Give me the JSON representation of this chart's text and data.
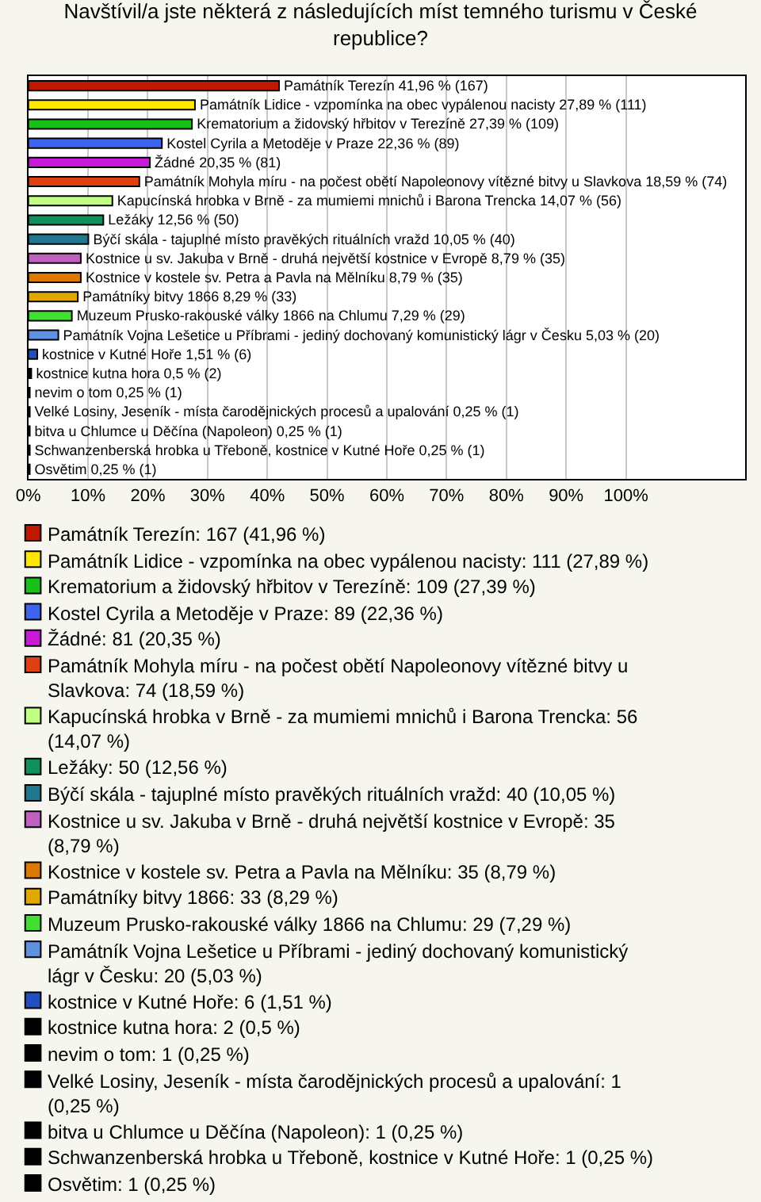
{
  "chart_data": {
    "type": "bar",
    "orientation": "horizontal",
    "title": "Navštívil/a jste některá z následujících míst temného turismu v České republice?",
    "categories": [
      "Památník Terezín",
      "Památník Lidice - vzpomínka na obec vypálenou nacisty",
      "Krematorium a židovský hřbitov v Terezíně",
      "Kostel Cyrila a Metoděje v Praze",
      "Žádné",
      "Památník Mohyla míru - na počest obětí Napoleonovy vítězné bitvy u Slavkova",
      "Kapucínská hrobka v Brně - za mumiemi mnichů i Barona Trencka",
      "Ležáky",
      "Býčí skála - tajuplné místo pravěkých rituálních vražd",
      "Kostnice u sv. Jakuba v Brně - druhá největší kostnice v Evropě",
      "Kostnice v kostele sv. Petra a Pavla na Mělníku",
      "Památníky bitvy 1866",
      "Muzeum Prusko-rakouské války 1866 na Chlumu",
      "Památník Vojna Lešetice u Příbrami - jediný dochovaný komunistický lágr v Česku",
      "kostnice v Kutné Hoře",
      "kostnice kutna hora",
      "nevim o tom",
      "Velké Losiny, Jeseník - místa čarodějnických procesů a upalování",
      "bitva u Chlumce u Děčína (Napoleon)",
      "Schwanzenberská hrobka u Třeboně, kostnice v Kutné Hoře",
      "Osvětim"
    ],
    "series": [
      {
        "name": "Památník Terezín: 167 (41,96 %)",
        "color": "#c01800",
        "values": [
          41.96,
          null,
          null,
          null,
          null,
          null,
          null,
          null,
          null,
          null,
          null,
          null,
          null,
          null,
          null,
          null,
          null,
          null,
          null,
          null,
          null
        ],
        "value_labels": [
          "41,96 % (167)",
          null,
          null,
          null,
          null,
          null,
          null,
          null,
          null,
          null,
          null,
          null,
          null,
          null,
          null,
          null,
          null,
          null,
          null,
          null,
          null
        ]
      },
      {
        "name": "Památník Lidice - vzpomínka na obec vypálenou nacisty: 111 (27,89 %)",
        "color": "#ffe800",
        "values": [
          null,
          27.89,
          null,
          null,
          null,
          null,
          null,
          null,
          null,
          null,
          null,
          null,
          null,
          null,
          null,
          null,
          null,
          null,
          null,
          null,
          null
        ],
        "value_labels": [
          null,
          "27,89 % (111)",
          null,
          null,
          null,
          null,
          null,
          null,
          null,
          null,
          null,
          null,
          null,
          null,
          null,
          null,
          null,
          null,
          null,
          null,
          null
        ]
      },
      {
        "name": "Krematorium a židovský hřbitov v Terezíně: 109 (27,39 %)",
        "color": "#18c018",
        "values": [
          null,
          null,
          27.39,
          null,
          null,
          null,
          null,
          null,
          null,
          null,
          null,
          null,
          null,
          null,
          null,
          null,
          null,
          null,
          null,
          null,
          null
        ],
        "value_labels": [
          null,
          null,
          "27,39 % (109)",
          null,
          null,
          null,
          null,
          null,
          null,
          null,
          null,
          null,
          null,
          null,
          null,
          null,
          null,
          null,
          null,
          null,
          null
        ]
      },
      {
        "name": "Kostel Cyrila a Metoděje v Praze: 89 (22,36 %)",
        "color": "#3c64f0",
        "values": [
          null,
          null,
          null,
          22.36,
          null,
          null,
          null,
          null,
          null,
          null,
          null,
          null,
          null,
          null,
          null,
          null,
          null,
          null,
          null,
          null,
          null
        ],
        "value_labels": [
          null,
          null,
          null,
          "22,36 % (89)",
          null,
          null,
          null,
          null,
          null,
          null,
          null,
          null,
          null,
          null,
          null,
          null,
          null,
          null,
          null,
          null,
          null
        ]
      },
      {
        "name": "Žádné: 81 (20,35 %)",
        "color": "#c818d8",
        "values": [
          null,
          null,
          null,
          null,
          20.35,
          null,
          null,
          null,
          null,
          null,
          null,
          null,
          null,
          null,
          null,
          null,
          null,
          null,
          null,
          null,
          null
        ],
        "value_labels": [
          null,
          null,
          null,
          null,
          "20,35 % (81)",
          null,
          null,
          null,
          null,
          null,
          null,
          null,
          null,
          null,
          null,
          null,
          null,
          null,
          null,
          null,
          null
        ]
      },
      {
        "name": "Památník Mohyla míru - na počest obětí Napoleonovy vítězné bitvy u Slavkova: 74 (18,59 %)",
        "color": "#e04010",
        "values": [
          null,
          null,
          null,
          null,
          null,
          18.59,
          null,
          null,
          null,
          null,
          null,
          null,
          null,
          null,
          null,
          null,
          null,
          null,
          null,
          null,
          null
        ],
        "value_labels": [
          null,
          null,
          null,
          null,
          null,
          "18,59 % (74)",
          null,
          null,
          null,
          null,
          null,
          null,
          null,
          null,
          null,
          null,
          null,
          null,
          null,
          null,
          null
        ]
      },
      {
        "name": "Kapucínská hrobka v Brně - za mumiemi mnichů i Barona Trencka: 56 (14,07 %)",
        "color": "#c0ff80",
        "values": [
          null,
          null,
          null,
          null,
          null,
          null,
          14.07,
          null,
          null,
          null,
          null,
          null,
          null,
          null,
          null,
          null,
          null,
          null,
          null,
          null,
          null
        ],
        "value_labels": [
          null,
          null,
          null,
          null,
          null,
          null,
          "14,07 % (56)",
          null,
          null,
          null,
          null,
          null,
          null,
          null,
          null,
          null,
          null,
          null,
          null,
          null,
          null
        ]
      },
      {
        "name": "Ležáky: 50 (12,56 %)",
        "color": "#10905a",
        "values": [
          null,
          null,
          null,
          null,
          null,
          null,
          null,
          12.56,
          null,
          null,
          null,
          null,
          null,
          null,
          null,
          null,
          null,
          null,
          null,
          null,
          null
        ],
        "value_labels": [
          null,
          null,
          null,
          null,
          null,
          null,
          null,
          "12,56 % (50)",
          null,
          null,
          null,
          null,
          null,
          null,
          null,
          null,
          null,
          null,
          null,
          null,
          null
        ]
      },
      {
        "name": "Býčí skála - tajuplné místo pravěkých rituálních vražd: 40 (10,05 %)",
        "color": "#207890",
        "values": [
          null,
          null,
          null,
          null,
          null,
          null,
          null,
          null,
          10.05,
          null,
          null,
          null,
          null,
          null,
          null,
          null,
          null,
          null,
          null,
          null,
          null
        ],
        "value_labels": [
          null,
          null,
          null,
          null,
          null,
          null,
          null,
          null,
          "10,05 % (40)",
          null,
          null,
          null,
          null,
          null,
          null,
          null,
          null,
          null,
          null,
          null,
          null
        ]
      },
      {
        "name": "Kostnice u sv. Jakuba v Brně - druhá největší kostnice v Evropě: 35 (8,79 %)",
        "color": "#c060c0",
        "values": [
          null,
          null,
          null,
          null,
          null,
          null,
          null,
          null,
          null,
          8.79,
          null,
          null,
          null,
          null,
          null,
          null,
          null,
          null,
          null,
          null,
          null
        ],
        "value_labels": [
          null,
          null,
          null,
          null,
          null,
          null,
          null,
          null,
          null,
          "8,79 % (35)",
          null,
          null,
          null,
          null,
          null,
          null,
          null,
          null,
          null,
          null,
          null
        ]
      },
      {
        "name": "Kostnice v kostele sv. Petra a Pavla na Mělníku: 35 (8,79 %)",
        "color": "#e07800",
        "values": [
          null,
          null,
          null,
          null,
          null,
          null,
          null,
          null,
          null,
          null,
          8.79,
          null,
          null,
          null,
          null,
          null,
          null,
          null,
          null,
          null,
          null
        ],
        "value_labels": [
          null,
          null,
          null,
          null,
          null,
          null,
          null,
          null,
          null,
          null,
          "8,79 % (35)",
          null,
          null,
          null,
          null,
          null,
          null,
          null,
          null,
          null,
          null
        ]
      },
      {
        "name": "Památníky bitvy 1866: 33 (8,29 %)",
        "color": "#e0a800",
        "values": [
          null,
          null,
          null,
          null,
          null,
          null,
          null,
          null,
          null,
          null,
          null,
          8.29,
          null,
          null,
          null,
          null,
          null,
          null,
          null,
          null,
          null
        ],
        "value_labels": [
          null,
          null,
          null,
          null,
          null,
          null,
          null,
          null,
          null,
          null,
          null,
          "8,29 % (33)",
          null,
          null,
          null,
          null,
          null,
          null,
          null,
          null,
          null
        ]
      },
      {
        "name": "Muzeum Prusko-rakouské války 1866 na Chlumu: 29 (7,29 %)",
        "color": "#40e030",
        "values": [
          null,
          null,
          null,
          null,
          null,
          null,
          null,
          null,
          null,
          null,
          null,
          null,
          7.29,
          null,
          null,
          null,
          null,
          null,
          null,
          null,
          null
        ],
        "value_labels": [
          null,
          null,
          null,
          null,
          null,
          null,
          null,
          null,
          null,
          null,
          null,
          null,
          "7,29 % (29)",
          null,
          null,
          null,
          null,
          null,
          null,
          null,
          null
        ]
      },
      {
        "name": "Památník Vojna Lešetice u Příbrami - jediný dochovaný komunistický lágr v Česku: 20 (5,03 %)",
        "color": "#6090e0",
        "values": [
          null,
          null,
          null,
          null,
          null,
          null,
          null,
          null,
          null,
          null,
          null,
          null,
          null,
          5.03,
          null,
          null,
          null,
          null,
          null,
          null,
          null
        ],
        "value_labels": [
          null,
          null,
          null,
          null,
          null,
          null,
          null,
          null,
          null,
          null,
          null,
          null,
          null,
          "5,03 % (20)",
          null,
          null,
          null,
          null,
          null,
          null,
          null
        ]
      },
      {
        "name": "kostnice v Kutné Hoře: 6 (1,51 %)",
        "color": "#2050c0",
        "values": [
          null,
          null,
          null,
          null,
          null,
          null,
          null,
          null,
          null,
          null,
          null,
          null,
          null,
          null,
          1.51,
          null,
          null,
          null,
          null,
          null,
          null
        ],
        "value_labels": [
          null,
          null,
          null,
          null,
          null,
          null,
          null,
          null,
          null,
          null,
          null,
          null,
          null,
          null,
          "1,51 % (6)",
          null,
          null,
          null,
          null,
          null,
          null
        ]
      },
      {
        "name": "kostnice kutna hora: 2 (0,5 %)",
        "color": "#000000",
        "values": [
          null,
          null,
          null,
          null,
          null,
          null,
          null,
          null,
          null,
          null,
          null,
          null,
          null,
          null,
          null,
          0.5,
          null,
          null,
          null,
          null,
          null
        ],
        "value_labels": [
          null,
          null,
          null,
          null,
          null,
          null,
          null,
          null,
          null,
          null,
          null,
          null,
          null,
          null,
          null,
          "0,5 % (2)",
          null,
          null,
          null,
          null,
          null
        ]
      },
      {
        "name": "nevim o tom: 1 (0,25 %)",
        "color": "#000000",
        "values": [
          null,
          null,
          null,
          null,
          null,
          null,
          null,
          null,
          null,
          null,
          null,
          null,
          null,
          null,
          null,
          null,
          0.25,
          null,
          null,
          null,
          null
        ],
        "value_labels": [
          null,
          null,
          null,
          null,
          null,
          null,
          null,
          null,
          null,
          null,
          null,
          null,
          null,
          null,
          null,
          null,
          "0,25 % (1)",
          null,
          null,
          null,
          null
        ]
      },
      {
        "name": "Velké Losiny, Jeseník - místa čarodějnických procesů a upalování: 1 (0,25 %)",
        "color": "#000000",
        "values": [
          null,
          null,
          null,
          null,
          null,
          null,
          null,
          null,
          null,
          null,
          null,
          null,
          null,
          null,
          null,
          null,
          null,
          0.25,
          null,
          null,
          null
        ],
        "value_labels": [
          null,
          null,
          null,
          null,
          null,
          null,
          null,
          null,
          null,
          null,
          null,
          null,
          null,
          null,
          null,
          null,
          null,
          "0,25 % (1)",
          null,
          null,
          null
        ]
      },
      {
        "name": "bitva u Chlumce u Děčína (Napoleon): 1 (0,25 %)",
        "color": "#000000",
        "values": [
          null,
          null,
          null,
          null,
          null,
          null,
          null,
          null,
          null,
          null,
          null,
          null,
          null,
          null,
          null,
          null,
          null,
          null,
          0.25,
          null,
          null
        ],
        "value_labels": [
          null,
          null,
          null,
          null,
          null,
          null,
          null,
          null,
          null,
          null,
          null,
          null,
          null,
          null,
          null,
          null,
          null,
          null,
          "0,25 % (1)",
          null,
          null
        ]
      },
      {
        "name": "Schwanzenberská hrobka u Třeboně, kostnice v Kutné Hoře: 1 (0,25 %)",
        "color": "#000000",
        "values": [
          null,
          null,
          null,
          null,
          null,
          null,
          null,
          null,
          null,
          null,
          null,
          null,
          null,
          null,
          null,
          null,
          null,
          null,
          null,
          0.25,
          null
        ],
        "value_labels": [
          null,
          null,
          null,
          null,
          null,
          null,
          null,
          null,
          null,
          null,
          null,
          null,
          null,
          null,
          null,
          null,
          null,
          null,
          null,
          "0,25 % (1)",
          null
        ]
      },
      {
        "name": "Osvětim: 1 (0,25 %)",
        "color": "#000000",
        "values": [
          null,
          null,
          null,
          null,
          null,
          null,
          null,
          null,
          null,
          null,
          null,
          null,
          null,
          null,
          null,
          null,
          null,
          null,
          null,
          null,
          0.25
        ],
        "value_labels": [
          null,
          null,
          null,
          null,
          null,
          null,
          null,
          null,
          null,
          null,
          null,
          null,
          null,
          null,
          null,
          null,
          null,
          null,
          null,
          null,
          "0,25 % (1)"
        ]
      }
    ],
    "xlim": [
      0,
      120
    ],
    "xticks": [
      {
        "value": 0,
        "label": "0%"
      },
      {
        "value": 10,
        "label": "10%"
      },
      {
        "value": 20,
        "label": "20%"
      },
      {
        "value": 30,
        "label": "30%"
      },
      {
        "value": 40,
        "label": "40%"
      },
      {
        "value": 50,
        "label": "50%"
      },
      {
        "value": 60,
        "label": "60%"
      },
      {
        "value": 70,
        "label": "70%"
      },
      {
        "value": 80,
        "label": "80%"
      },
      {
        "value": 90,
        "label": "90%"
      },
      {
        "value": 100,
        "label": "100%"
      }
    ],
    "grid": "x",
    "legend": "bottom",
    "tick_labels": "x"
  }
}
